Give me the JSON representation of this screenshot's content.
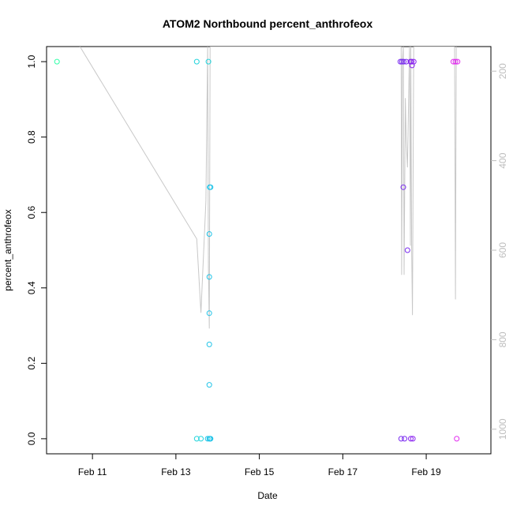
{
  "chart_data": {
    "type": "scatter",
    "title": "ATOM2 Northbound percent_anthrofeox",
    "xlabel": "Date",
    "ylabel": "percent_anthrofeox",
    "x_ticks": [
      "Feb 11",
      "Feb 13",
      "Feb 15",
      "Feb 17",
      "Feb 19"
    ],
    "x_tick_days": [
      11,
      13,
      15,
      17,
      19
    ],
    "xlim_days": [
      9.9,
      20.55
    ],
    "y_ticks": [
      "0.0",
      "0.2",
      "0.4",
      "0.6",
      "0.8",
      "1.0"
    ],
    "y_tick_values": [
      0,
      0.2,
      0.4,
      0.6,
      0.8,
      1.0
    ],
    "ylim": [
      -0.04,
      1.04
    ],
    "secondary_axis": {
      "ticks": [
        "200",
        "400",
        "600",
        "800",
        "1000"
      ],
      "tick_values": [
        200,
        400,
        600,
        800,
        1000
      ],
      "lim": [
        1055,
        145
      ],
      "color": "#bdbdbd"
    },
    "points": [
      {
        "x": 10.15,
        "y": 1.0,
        "color": "#33ffaa"
      },
      {
        "x": 13.5,
        "y": 1.0,
        "color": "#22d4dc"
      },
      {
        "x": 13.78,
        "y": 1.0,
        "color": "#22d4dc"
      },
      {
        "x": 13.5,
        "y": 0.0,
        "color": "#22d4dc"
      },
      {
        "x": 13.6,
        "y": 0.0,
        "color": "#22d4dc"
      },
      {
        "x": 13.76,
        "y": 0.0,
        "color": "#22c4e8"
      },
      {
        "x": 13.8,
        "y": 0.0,
        "color": "#22c4e8"
      },
      {
        "x": 13.82,
        "y": 0.0,
        "color": "#22c4e8"
      },
      {
        "x": 13.83,
        "y": 0.0,
        "color": "#22c4e8"
      },
      {
        "x": 13.81,
        "y": 0.667,
        "color": "#22c4e8"
      },
      {
        "x": 13.83,
        "y": 0.667,
        "color": "#22c4e8"
      },
      {
        "x": 13.8,
        "y": 0.543,
        "color": "#22c4e8"
      },
      {
        "x": 13.8,
        "y": 0.429,
        "color": "#22c4e8"
      },
      {
        "x": 13.8,
        "y": 0.333,
        "color": "#22c4e8"
      },
      {
        "x": 13.8,
        "y": 0.25,
        "color": "#22c4e8"
      },
      {
        "x": 13.8,
        "y": 0.143,
        "color": "#22c4e8"
      },
      {
        "x": 18.38,
        "y": 1.0,
        "color": "#7a2cf0"
      },
      {
        "x": 18.42,
        "y": 1.0,
        "color": "#7a2cf0"
      },
      {
        "x": 18.46,
        "y": 1.0,
        "color": "#7a2cf0"
      },
      {
        "x": 18.52,
        "y": 1.0,
        "color": "#7a2cf0"
      },
      {
        "x": 18.62,
        "y": 1.0,
        "color": "#8a22f0"
      },
      {
        "x": 18.65,
        "y": 1.0,
        "color": "#8a22f0"
      },
      {
        "x": 18.7,
        "y": 1.0,
        "color": "#8a22f0"
      },
      {
        "x": 18.66,
        "y": 0.99,
        "color": "#8a22f0"
      },
      {
        "x": 18.45,
        "y": 0.667,
        "color": "#7a2cf0"
      },
      {
        "x": 18.55,
        "y": 0.5,
        "color": "#7a2cf0"
      },
      {
        "x": 18.4,
        "y": 0.0,
        "color": "#7a2cf0"
      },
      {
        "x": 18.48,
        "y": 0.0,
        "color": "#7a2cf0"
      },
      {
        "x": 18.63,
        "y": 0.0,
        "color": "#8a22f0"
      },
      {
        "x": 18.68,
        "y": 0.0,
        "color": "#8a22f0"
      },
      {
        "x": 19.65,
        "y": 1.0,
        "color": "#e22cf0"
      },
      {
        "x": 19.7,
        "y": 1.0,
        "color": "#e22cf0"
      },
      {
        "x": 19.75,
        "y": 1.0,
        "color": "#e22cf0"
      },
      {
        "x": 19.73,
        "y": 0.0,
        "color": "#e22cf0"
      }
    ],
    "secondary_line": {
      "color": "#c8c8c8",
      "x": [
        10.7,
        13.5,
        13.6,
        13.72,
        13.76,
        13.78,
        13.8,
        13.82,
        13.84,
        13.85,
        18.4,
        18.41,
        18.42,
        18.43,
        18.45,
        18.47,
        18.5,
        18.52,
        18.55,
        18.6,
        18.62,
        18.63,
        18.65,
        18.67,
        18.7,
        18.72,
        19.68,
        19.7,
        19.72
      ],
      "y": [
        145,
        575,
        740,
        490,
        145,
        640,
        775,
        145,
        145,
        145,
        145,
        655,
        455,
        175,
        145,
        655,
        260,
        355,
        415,
        145,
        590,
        145,
        595,
        745,
        145,
        145,
        145,
        710,
        145
      ]
    }
  }
}
